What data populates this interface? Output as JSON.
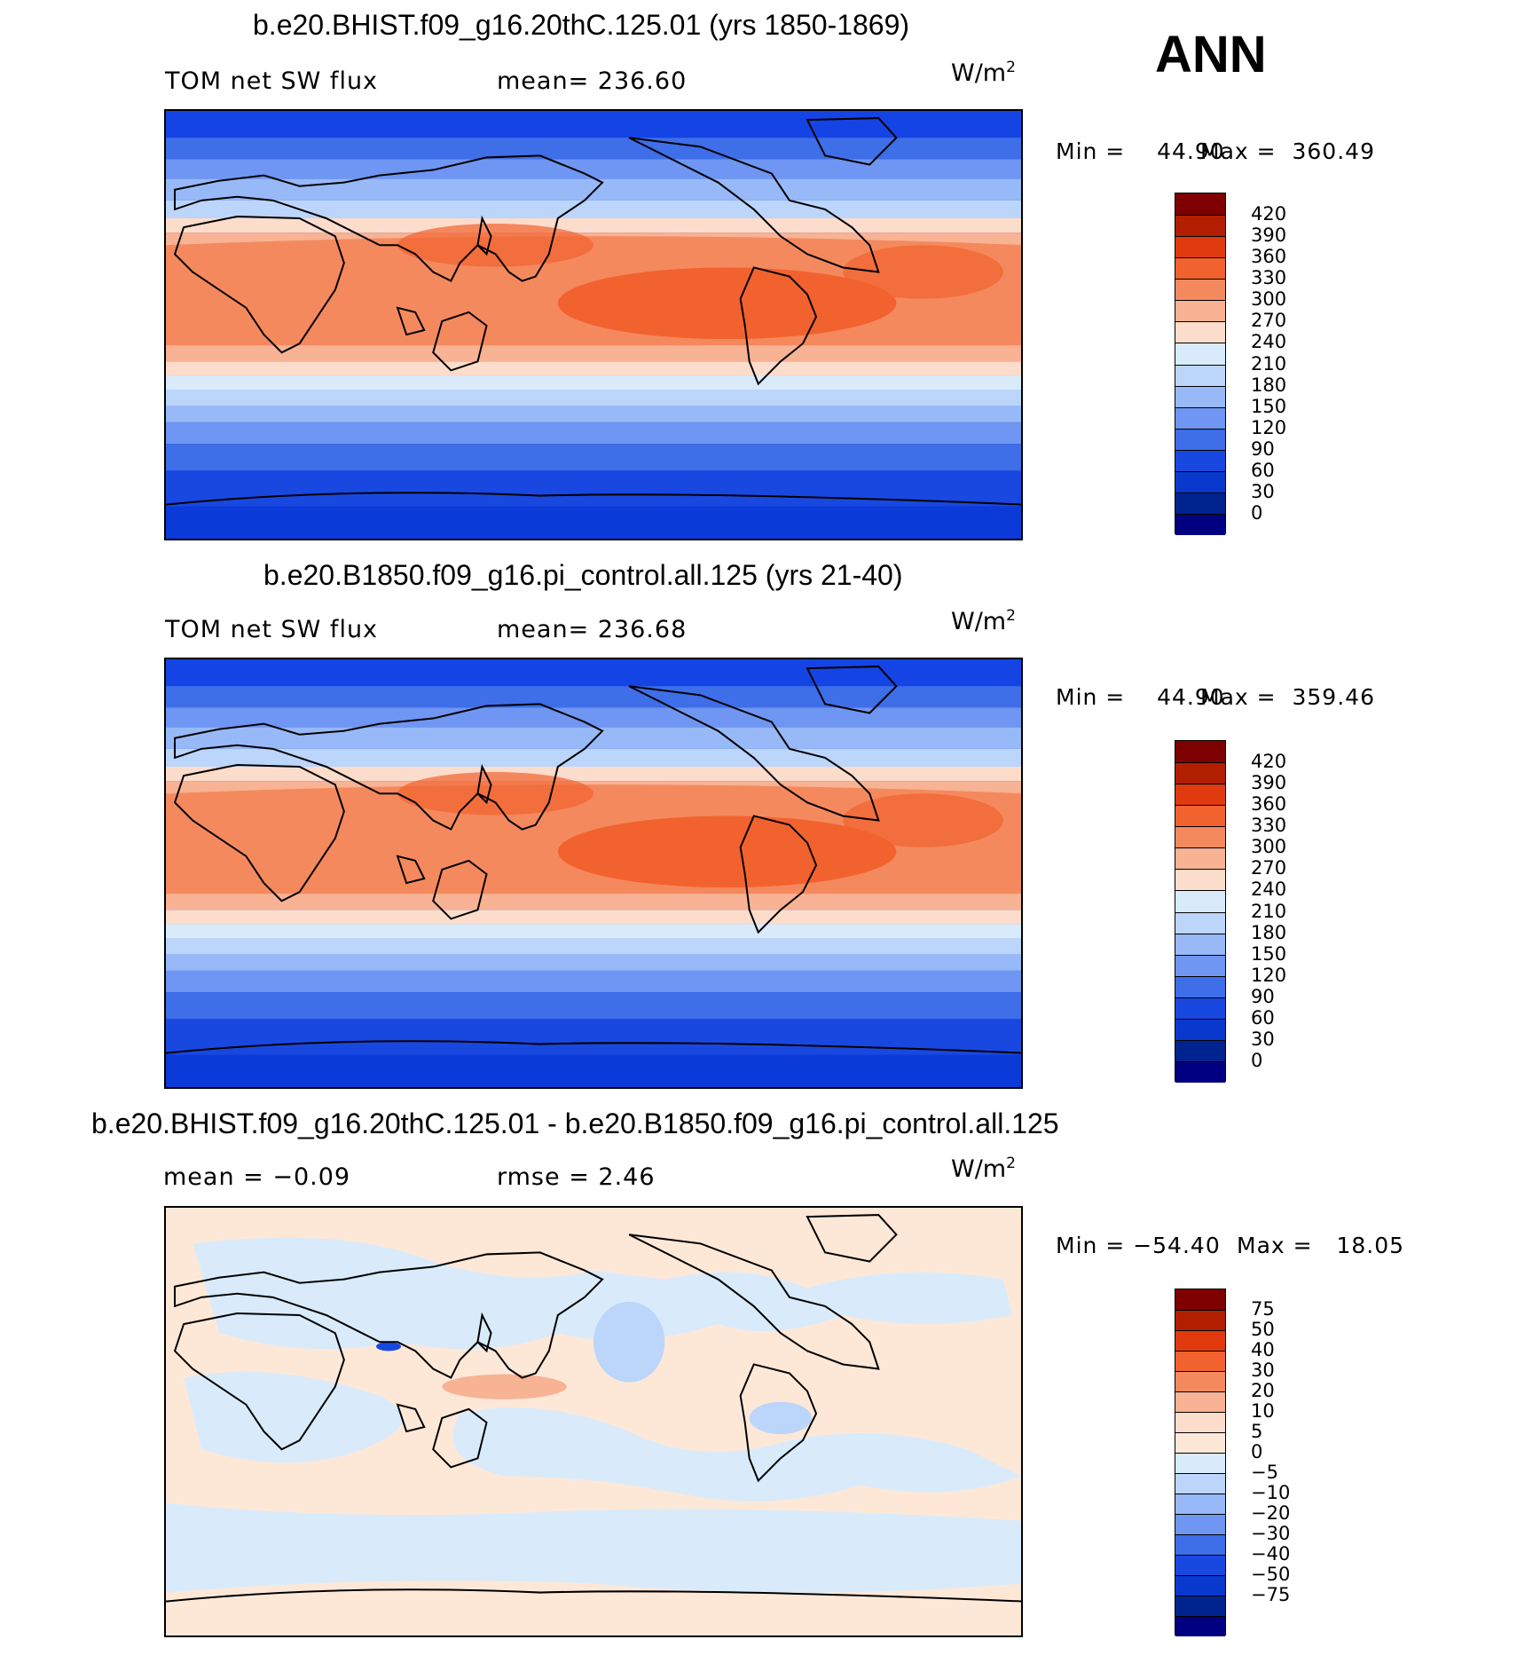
{
  "season": "ANN",
  "panels": [
    {
      "title": "b.e20.BHIST.f09_g16.20thC.125.01 (yrs 1850-1869)",
      "left_label": "TOM net SW flux",
      "center_label": "mean=  236.60",
      "unit_base": "W/m",
      "unit_exp": "2",
      "min_label": "Min =",
      "min_value": "44.90",
      "max_label": "Max =",
      "max_value": "360.49",
      "colorbar_labels": [
        "420",
        "390",
        "360",
        "330",
        "300",
        "270",
        "240",
        "210",
        "180",
        "150",
        "120",
        "90",
        "60",
        "30",
        "0"
      ]
    },
    {
      "title": "b.e20.B1850.f09_g16.pi_control.all.125 (yrs 21-40)",
      "left_label": "TOM net SW flux",
      "center_label": "mean=  236.68",
      "unit_base": "W/m",
      "unit_exp": "2",
      "min_label": "Min =",
      "min_value": "44.90",
      "max_label": "Max =",
      "max_value": "359.46",
      "colorbar_labels": [
        "420",
        "390",
        "360",
        "330",
        "300",
        "270",
        "240",
        "210",
        "180",
        "150",
        "120",
        "90",
        "60",
        "30",
        "0"
      ]
    },
    {
      "title": "b.e20.BHIST.f09_g16.20thC.125.01 - b.e20.B1850.f09_g16.pi_control.all.125",
      "left_label": "mean =   −0.09",
      "center_label": "rmse =     2.46",
      "unit_base": "W/m",
      "unit_exp": "2",
      "min_label": "Min = −54.40",
      "min_value": "",
      "max_label": "Max =",
      "max_value": "18.05",
      "colorbar_labels": [
        "75",
        "50",
        "40",
        "30",
        "20",
        "10",
        "5",
        "0",
        "−5",
        "−10",
        "−20",
        "−30",
        "−40",
        "−50",
        "−75"
      ]
    }
  ],
  "colors": {
    "abs_scale": [
      "#7f0000",
      "#b21f00",
      "#e03a0e",
      "#f2622f",
      "#f5895e",
      "#f8b294",
      "#fcdccb",
      "#d9ebfb",
      "#bcd5fb",
      "#98b9f8",
      "#6f96f2",
      "#3e6ee8",
      "#1948e0",
      "#0838cc",
      "#00248f",
      "#000080"
    ],
    "diff_scale": [
      "#7f0000",
      "#b21f00",
      "#e03a0e",
      "#f2622f",
      "#f5895e",
      "#f8b294",
      "#fcdccb",
      "#fde8d8",
      "#d9ebfb",
      "#bcd5fb",
      "#98b9f8",
      "#6f96f2",
      "#3e6ee8",
      "#1948e0",
      "#0838cc",
      "#00248f",
      "#000080"
    ]
  }
}
